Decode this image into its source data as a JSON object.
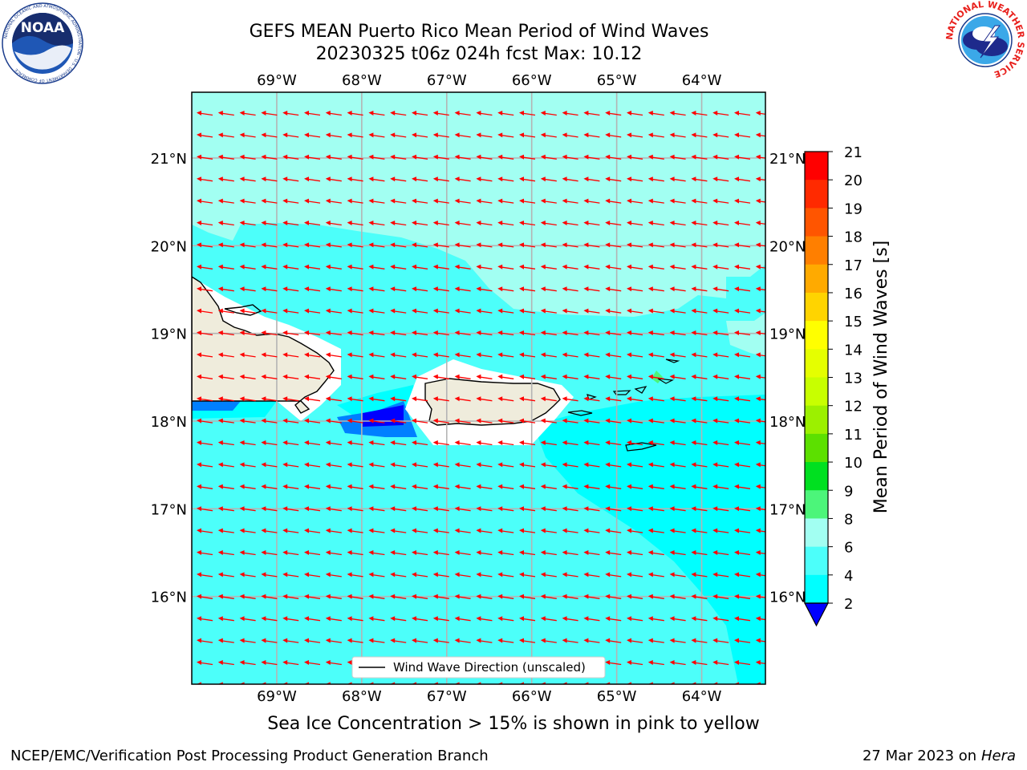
{
  "title": {
    "line1": "GEFS MEAN Puerto Rico Mean Period of Wind Waves",
    "line2": "20230325 t06z 024h fcst   Max: 10.12"
  },
  "map": {
    "lon_range": [
      -70,
      -63.25
    ],
    "lat_range": [
      15,
      21.75
    ],
    "lon_ticks": [
      {
        "value": -69,
        "label": "69°W"
      },
      {
        "value": -68,
        "label": "68°W"
      },
      {
        "value": -67,
        "label": "67°W"
      },
      {
        "value": -66,
        "label": "66°W"
      },
      {
        "value": -65,
        "label": "65°W"
      },
      {
        "value": -64,
        "label": "64°W"
      }
    ],
    "lat_ticks": [
      {
        "value": 21,
        "label": "21°N"
      },
      {
        "value": 20,
        "label": "20°N"
      },
      {
        "value": 19,
        "label": "19°N"
      },
      {
        "value": 18,
        "label": "18°N"
      },
      {
        "value": 17,
        "label": "17°N"
      },
      {
        "value": 16,
        "label": "16°N"
      }
    ],
    "grid": true,
    "land_color": "#efecdc",
    "arrow_color": "#ff0000",
    "arrow_direction": "from east (westward)",
    "legend": {
      "label": "Wind Wave Direction (unscaled)",
      "placement": "bottom-center"
    }
  },
  "colorbar": {
    "label": "Mean Period of Wind Waves [s]",
    "ticks": [
      "21",
      "20",
      "19",
      "18",
      "17",
      "16",
      "15",
      "14",
      "13",
      "12",
      "11",
      "10",
      "9",
      "8",
      "6",
      "4",
      "2"
    ],
    "colors": [
      "#ff0000",
      "#ff2a00",
      "#ff5500",
      "#ff7f00",
      "#ffaa00",
      "#ffd400",
      "#ffff00",
      "#e5ff00",
      "#c8ff00",
      "#9cf000",
      "#5ce000",
      "#00e020",
      "#4cf57a",
      "#a2fff2",
      "#4cfffa",
      "#00ffff",
      "#0080ff",
      "#0000ff"
    ],
    "extend_min_color": "#0000ff"
  },
  "footer": {
    "note": "Sea Ice Concentration > 15% is shown in pink to yellow",
    "left": "NCEP/EMC/Verification Post Processing Product Generation Branch",
    "right_date": "27 Mar 2023 on",
    "right_machine": "Hera"
  },
  "logos": {
    "noaa": {
      "text": "NOAA",
      "ring_text": "NATIONAL OCEANIC AND ATMOSPHERIC ADMINISTRATION · U.S. DEPARTMENT OF COMMERCE"
    },
    "nws": {
      "ring_text": "NATIONAL WEATHER SERVICE"
    }
  }
}
